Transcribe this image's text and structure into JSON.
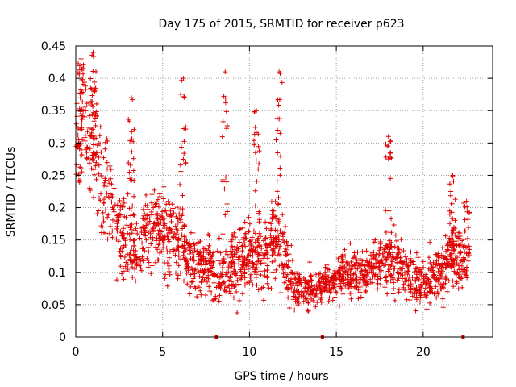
{
  "chart_data": {
    "type": "scatter",
    "title": "Day 175 of 2015, SRMTID for receiver p623",
    "xlabel": "GPS time / hours",
    "ylabel": "SRMTID / TECUs",
    "xlim": [
      0,
      24
    ],
    "ylim": [
      0,
      0.45
    ],
    "x_ticks": [
      0,
      5,
      10,
      15,
      20
    ],
    "x_tick_labels": [
      "0",
      "5",
      "10",
      "15",
      "20"
    ],
    "y_ticks": [
      0,
      0.05,
      0.1,
      0.15,
      0.2,
      0.25,
      0.3,
      0.35,
      0.4,
      0.45
    ],
    "y_tick_labels": [
      "0",
      "0.05",
      "0.1",
      "0.15",
      "0.2",
      "0.25",
      "0.3",
      "0.35",
      "0.4",
      "0.45"
    ],
    "grid": true,
    "marker": "+",
    "color": "#e00000",
    "series": [
      {
        "name": "p623",
        "profile": [
          [
            0.0,
            0.3,
            0.06
          ],
          [
            0.5,
            0.33,
            0.06
          ],
          [
            1.0,
            0.3,
            0.06
          ],
          [
            1.5,
            0.24,
            0.06
          ],
          [
            2.0,
            0.2,
            0.05
          ],
          [
            2.5,
            0.16,
            0.04
          ],
          [
            3.0,
            0.15,
            0.04
          ],
          [
            3.5,
            0.13,
            0.04
          ],
          [
            4.0,
            0.16,
            0.04
          ],
          [
            4.5,
            0.17,
            0.04
          ],
          [
            5.0,
            0.17,
            0.04
          ],
          [
            5.5,
            0.16,
            0.04
          ],
          [
            6.0,
            0.15,
            0.04
          ],
          [
            6.5,
            0.12,
            0.035
          ],
          [
            7.0,
            0.11,
            0.03
          ],
          [
            7.5,
            0.11,
            0.03
          ],
          [
            8.0,
            0.1,
            0.03
          ],
          [
            8.5,
            0.1,
            0.03
          ],
          [
            9.0,
            0.11,
            0.03
          ],
          [
            9.5,
            0.12,
            0.035
          ],
          [
            10.0,
            0.13,
            0.035
          ],
          [
            10.5,
            0.13,
            0.035
          ],
          [
            11.0,
            0.13,
            0.035
          ],
          [
            11.5,
            0.15,
            0.04
          ],
          [
            12.0,
            0.13,
            0.04
          ],
          [
            12.5,
            0.08,
            0.025
          ],
          [
            13.0,
            0.07,
            0.02
          ],
          [
            13.5,
            0.075,
            0.02
          ],
          [
            14.0,
            0.08,
            0.02
          ],
          [
            14.5,
            0.085,
            0.02
          ],
          [
            15.0,
            0.09,
            0.02
          ],
          [
            15.5,
            0.1,
            0.025
          ],
          [
            16.0,
            0.1,
            0.025
          ],
          [
            16.5,
            0.1,
            0.025
          ],
          [
            17.0,
            0.11,
            0.025
          ],
          [
            17.5,
            0.12,
            0.03
          ],
          [
            18.0,
            0.12,
            0.03
          ],
          [
            18.5,
            0.11,
            0.03
          ],
          [
            19.0,
            0.1,
            0.025
          ],
          [
            19.5,
            0.09,
            0.025
          ],
          [
            20.0,
            0.09,
            0.025
          ],
          [
            20.5,
            0.09,
            0.025
          ],
          [
            21.0,
            0.1,
            0.025
          ],
          [
            21.5,
            0.12,
            0.03
          ],
          [
            22.0,
            0.12,
            0.03
          ],
          [
            22.6,
            0.12,
            0.03
          ]
        ],
        "spikes": [
          [
            0.3,
            0.43
          ],
          [
            1.0,
            0.44
          ],
          [
            3.2,
            0.37
          ],
          [
            6.2,
            0.4
          ],
          [
            8.6,
            0.41
          ],
          [
            10.4,
            0.35
          ],
          [
            11.7,
            0.41
          ],
          [
            18.0,
            0.31
          ],
          [
            21.7,
            0.25
          ],
          [
            22.5,
            0.21
          ]
        ],
        "zero_points": [
          8.1,
          14.2,
          22.3
        ],
        "x_range": [
          0,
          22.6
        ]
      }
    ]
  }
}
